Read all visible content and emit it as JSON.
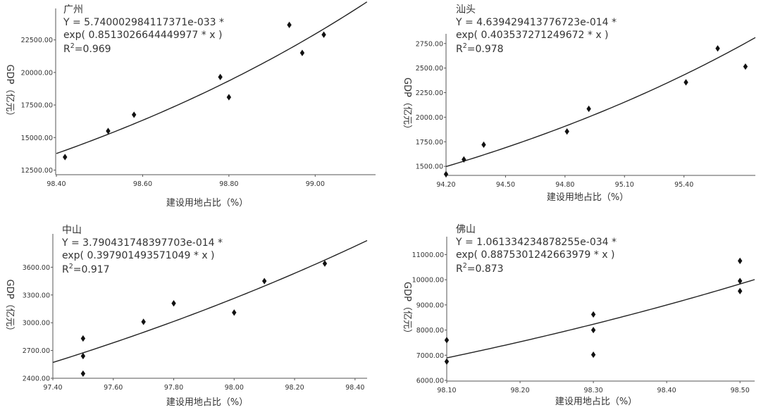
{
  "chart_data": [
    {
      "type": "scatter",
      "title": "广州",
      "equation_line1": "Y = 5.740002984117371e-033 *",
      "equation_line2": "exp( 0.8513026644449977 * x )",
      "r2_label": "R",
      "r2_sup": "2",
      "r2_value": "=0.969",
      "xlabel": "建设用地占比（%）",
      "ylabel": "GDP（亿元）",
      "xlim": [
        98.4,
        99.14
      ],
      "ylim": [
        12200,
        24700
      ],
      "xticks": [
        98.4,
        98.6,
        98.8,
        99.0
      ],
      "xtick_labels": [
        "98.40",
        "98.60",
        "98.80",
        "99.00"
      ],
      "yticks": [
        12500,
        15000,
        17500,
        20000,
        22500
      ],
      "ytick_labels": [
        "12500.00",
        "15000.00",
        "17500.00",
        "20000.00",
        "22500.00"
      ],
      "points": [
        {
          "x": 98.42,
          "y": 13500
        },
        {
          "x": 98.52,
          "y": 15500
        },
        {
          "x": 98.58,
          "y": 16750
        },
        {
          "x": 98.78,
          "y": 19650
        },
        {
          "x": 98.8,
          "y": 18100
        },
        {
          "x": 98.94,
          "y": 23650
        },
        {
          "x": 98.97,
          "y": 21500
        },
        {
          "x": 99.02,
          "y": 22900
        }
      ],
      "fit": {
        "a": 5.740002984117371e-33,
        "b": 0.8513026644449977,
        "x_from": 98.4,
        "x_to": 99.12
      }
    },
    {
      "type": "scatter",
      "title": "汕头",
      "equation_line1": "Y = 4.639429413776723e-014 *",
      "equation_line2": "exp( 0.403537271249672 * x )",
      "r2_label": "R",
      "r2_sup": "2",
      "r2_value": "=0.978",
      "xlabel": "建设用地占比（%）",
      "ylabel": "GDP（亿元）",
      "xlim": [
        94.2,
        95.76
      ],
      "ylim": [
        1415,
        2820
      ],
      "xticks": [
        94.2,
        94.5,
        94.8,
        95.1,
        95.4
      ],
      "xtick_labels": [
        "94.20",
        "94.50",
        "94.80",
        "95.10",
        "95.40"
      ],
      "yticks": [
        1500,
        1750,
        2000,
        2250,
        2500,
        2750
      ],
      "ytick_labels": [
        "1500.00",
        "1750.00",
        "2000.00",
        "2250.00",
        "2500.00",
        "2750.00"
      ],
      "points": [
        {
          "x": 94.2,
          "y": 1420
        },
        {
          "x": 94.29,
          "y": 1570
        },
        {
          "x": 94.39,
          "y": 1720
        },
        {
          "x": 94.81,
          "y": 1855
        },
        {
          "x": 94.92,
          "y": 2085
        },
        {
          "x": 95.41,
          "y": 2355
        },
        {
          "x": 95.57,
          "y": 2700
        },
        {
          "x": 95.71,
          "y": 2515
        }
      ],
      "fit": {
        "a": 4.639429413776723e-14,
        "b": 0.403537271249672,
        "x_from": 94.2,
        "x_to": 95.76
      }
    },
    {
      "type": "scatter",
      "title": "中山",
      "equation_line1": "Y = 3.790431748397703e-014 *",
      "equation_line2": "exp( 0.397901493571049 * x )",
      "r2_label": "R",
      "r2_sup": "2",
      "r2_value": "=0.917",
      "xlabel": "建设用地占比（%）",
      "ylabel": "GDP（亿元）",
      "xlim": [
        97.4,
        98.44
      ],
      "ylim": [
        2400,
        3930
      ],
      "xticks": [
        97.4,
        97.6,
        97.8,
        98.0,
        98.2,
        98.4
      ],
      "xtick_labels": [
        "97.40",
        "97.60",
        "97.80",
        "98.00",
        "98.20",
        "98.40"
      ],
      "yticks": [
        2400,
        2700,
        3000,
        3300,
        3600
      ],
      "ytick_labels": [
        "2400.00",
        "2700.00",
        "3000.00",
        "3300.00",
        "3600.00"
      ],
      "points": [
        {
          "x": 97.5,
          "y": 2450
        },
        {
          "x": 97.5,
          "y": 2640
        },
        {
          "x": 97.5,
          "y": 2830
        },
        {
          "x": 97.7,
          "y": 3010
        },
        {
          "x": 97.8,
          "y": 3210
        },
        {
          "x": 98.0,
          "y": 3110
        },
        {
          "x": 98.1,
          "y": 3450
        },
        {
          "x": 98.3,
          "y": 3640
        }
      ],
      "fit": {
        "a": 3.790431748397703e-14,
        "b": 0.397901493571049,
        "x_from": 97.4,
        "x_to": 98.44
      }
    },
    {
      "type": "scatter",
      "title": "佛山",
      "equation_line1": "Y = 1.061334234878255e-034 *",
      "equation_line2": "exp( 0.8875301242663979 * x )",
      "r2_label": "R",
      "r2_sup": "2",
      "r2_value": "=0.873",
      "xlabel": "建设用地占比（%）",
      "ylabel": "GDP（亿元）",
      "xlim": [
        98.1,
        98.52
      ],
      "ylim": [
        6000,
        11600
      ],
      "xticks": [
        98.1,
        98.2,
        98.3,
        98.4,
        98.5
      ],
      "xtick_labels": [
        "98.10",
        "98.20",
        "98.30",
        "98.40",
        "98.50"
      ],
      "yticks": [
        6000,
        7000,
        8000,
        9000,
        10000,
        11000
      ],
      "ytick_labels": [
        "6000.00",
        "7000.00",
        "8000.00",
        "9000.00",
        "10000.00",
        "11000.00"
      ],
      "points": [
        {
          "x": 98.1,
          "y": 6750
        },
        {
          "x": 98.1,
          "y": 7600
        },
        {
          "x": 98.3,
          "y": 7020
        },
        {
          "x": 98.3,
          "y": 8000
        },
        {
          "x": 98.3,
          "y": 8620
        },
        {
          "x": 98.5,
          "y": 9550
        },
        {
          "x": 98.5,
          "y": 9950
        },
        {
          "x": 98.5,
          "y": 10750
        }
      ],
      "fit": {
        "a": 1.061334234878255e-34,
        "b": 0.8875301242663979,
        "x_from": 98.1,
        "x_to": 98.52
      }
    }
  ]
}
